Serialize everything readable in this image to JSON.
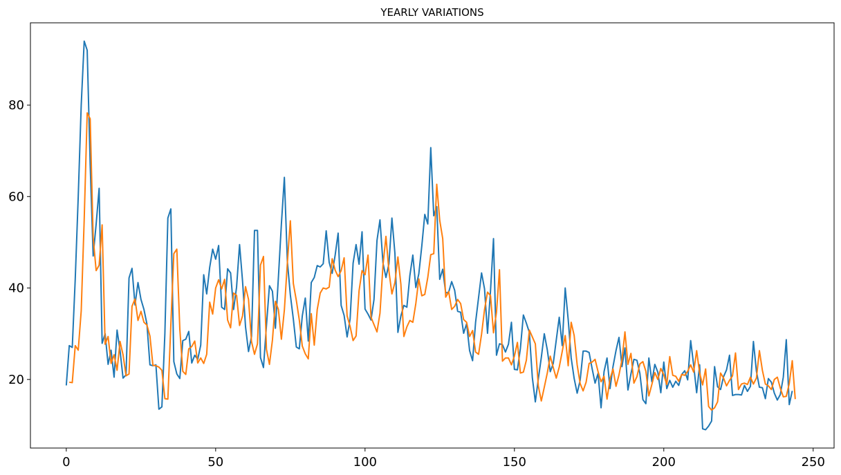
{
  "chart_data": {
    "type": "line",
    "title": "YEARLY VARIATIONS",
    "xlabel": "",
    "ylabel": "",
    "xlim": [
      -12,
      257
    ],
    "ylim": [
      5,
      98
    ],
    "xticks": [
      0,
      50,
      100,
      150,
      200,
      250
    ],
    "yticks": [
      20,
      40,
      60,
      80
    ],
    "grid": false,
    "legend": "none",
    "colors": [
      "#1f77b4",
      "#ff7f0e"
    ],
    "series": [
      {
        "values": [
          18.7,
          27.4,
          27,
          42,
          60,
          80,
          94,
          92,
          67,
          47,
          54,
          61.8,
          27.9,
          30,
          23.3,
          26.4,
          20.5,
          30.8,
          26.3,
          20.3,
          21,
          42.2,
          44.3,
          36.3,
          41.2,
          37.5,
          35.3,
          32.1,
          23.2,
          23,
          23.2,
          13.5,
          14,
          30,
          55.3,
          57.3,
          23.9,
          21.2,
          20.2,
          28.5,
          28.8,
          30.5,
          23.6,
          25.3,
          24.4,
          27.5,
          42.9,
          38.7,
          44.5,
          48.5,
          46.3,
          49.3,
          35.8,
          35.3,
          44.2,
          43.3,
          35.3,
          40.2,
          49.5,
          41.5,
          31.5,
          26.1,
          29.4,
          52.6,
          52.6,
          24.8,
          22.6,
          31.8,
          40.5,
          39.3,
          31.2,
          42.3,
          54,
          64.2,
          45.8,
          38.5,
          33.2,
          27.1,
          26.7,
          33.9,
          37.8,
          28.4,
          41.2,
          42.3,
          44.9,
          44.6,
          45.3,
          52.5,
          45.6,
          43.2,
          47.2,
          52,
          36.2,
          34,
          29.3,
          33.2,
          45.4,
          49.5,
          45.2,
          52.3,
          35.4,
          34.3,
          33,
          37.5,
          50.4,
          54.9,
          45.5,
          42.3,
          45.3,
          55.3,
          47.6,
          30.3,
          33.9,
          36.2,
          35.8,
          42.7,
          47.2,
          40.1,
          43.1,
          49.2,
          56.1,
          54,
          70.7,
          55.8,
          57.8,
          41.9,
          44.1,
          38.9,
          39.1,
          41.4,
          39.5,
          34.9,
          34.7,
          30.1,
          32.2,
          26.3,
          24.1,
          32.5,
          37.9,
          43.3,
          39.8,
          30.1,
          39.4,
          50.8,
          25.3,
          27.8,
          27.6,
          26,
          27.7,
          32.5,
          22.2,
          22.1,
          26.8,
          34.1,
          32.3,
          30.3,
          20.4,
          15.1,
          20.1,
          24.8,
          30,
          26.5,
          21.7,
          23.5,
          28.6,
          33.6,
          27.4,
          40,
          33.1,
          24.7,
          20.2,
          17,
          19.8,
          26.2,
          26.2,
          25.9,
          22.4,
          19.2,
          21.3,
          13.8,
          21.7,
          24.7,
          18,
          22.8,
          26.3,
          29.2,
          22.8,
          26.9,
          17.7,
          21.2,
          24.4,
          24.2,
          21.3,
          15.6,
          14.7,
          24.7,
          19.5,
          23.3,
          21.6,
          17.1,
          23.8,
          18,
          19.8,
          18.3,
          19.6,
          18.7,
          21.1,
          21.9,
          19.9,
          28.5,
          23.1,
          17.1,
          23.2,
          9.2,
          9,
          9.8,
          10.9,
          22.8,
          18.4,
          17.8,
          20.6,
          22.1,
          25.3,
          16.5,
          16.7,
          16.7,
          16.6,
          18.7,
          17.4,
          18.5,
          28.3,
          21.8,
          18.3,
          18.2,
          15.8,
          20.2,
          19.4,
          17,
          15.5,
          16.7,
          20.5,
          28.7,
          14.5,
          17.5
        ],
        "color": "#1f77b4"
      },
      {
        "values": [
          null,
          19.4,
          19.3,
          27.4,
          26.4,
          35,
          55,
          78.3,
          77,
          51,
          43.8,
          45,
          53.8,
          27.7,
          29.4,
          23.5,
          25.4,
          22,
          28.3,
          25.4,
          20.8,
          21.2,
          36,
          37.6,
          32.9,
          34.9,
          32.5,
          31.9,
          29.5,
          23.1,
          23,
          22.7,
          22,
          15.8,
          15.7,
          32,
          47.5,
          48.5,
          31,
          21.8,
          21.1,
          26.7,
          27.2,
          28.4,
          23.6,
          24.7,
          23.5,
          25.5,
          36.9,
          34.3,
          40,
          41.8,
          39.8,
          41.9,
          33,
          31.3,
          38.9,
          38.4,
          31.8,
          33.9,
          40.3,
          37.5,
          28.3,
          25.5,
          27.8,
          45,
          46.9,
          26.6,
          23.3,
          28.6,
          37.1,
          35.3,
          28.8,
          35.2,
          45.5,
          54.7,
          41,
          37.3,
          33,
          27.3,
          25.6,
          24.5,
          34.4,
          27.5,
          35.3,
          38.9,
          40,
          39.8,
          40.2,
          46.4,
          43.9,
          42.5,
          43.8,
          46.6,
          33.9,
          31.6,
          28.5,
          29.5,
          39.4,
          43.8,
          42.9,
          47.2,
          33.6,
          32,
          30.4,
          34.5,
          44.9,
          51.3,
          43.7,
          38.7,
          41.2,
          46.8,
          40.8,
          29.4,
          31.5,
          32.9,
          32.5,
          36.6,
          42,
          38.3,
          38.6,
          42.3,
          47.3,
          47.5,
          62.7,
          54.8,
          50.8,
          38,
          39.2,
          35.3,
          36,
          37.5,
          36.6,
          33.1,
          32.5,
          29.4,
          30.7,
          26,
          25.5,
          29.9,
          35.3,
          39.1,
          38.3,
          30.2,
          34.7,
          44,
          24,
          24.7,
          24.7,
          23.2,
          25.1,
          28.1,
          21.4,
          21.6,
          24.2,
          30.8,
          29.3,
          27.8,
          18.6,
          15.3,
          18.3,
          21.4,
          25.1,
          22.6,
          20.3,
          22.7,
          26.1,
          29.6,
          23,
          32.5,
          29.6,
          23.2,
          19.1,
          17.5,
          19.4,
          23.5,
          23.8,
          24.4,
          21.7,
          19.5,
          20.7,
          15.7,
          20.1,
          22.3,
          18.5,
          21,
          24.3,
          30.4,
          23.3,
          25.7,
          19.2,
          20.6,
          23.4,
          23.9,
          21.8,
          16.4,
          18.9,
          21.5,
          20,
          22.4,
          21,
          18.9,
          25,
          20.9,
          20.7,
          19.6,
          21.1,
          20.9,
          21.8,
          23.2,
          21.6,
          26.3,
          21.4,
          18.8,
          22.3,
          14.1,
          13.3,
          13.8,
          15.1,
          21.4,
          20.3,
          18.6,
          19.8,
          20.8,
          25.8,
          17.8,
          19,
          19.2,
          18.9,
          20.5,
          19,
          20.3,
          26.3,
          22,
          19,
          18.6,
          17.8,
          20,
          20.5,
          18.1,
          16.2,
          16.3,
          19.1,
          24.1,
          15.7
        ]
      }
    ]
  }
}
